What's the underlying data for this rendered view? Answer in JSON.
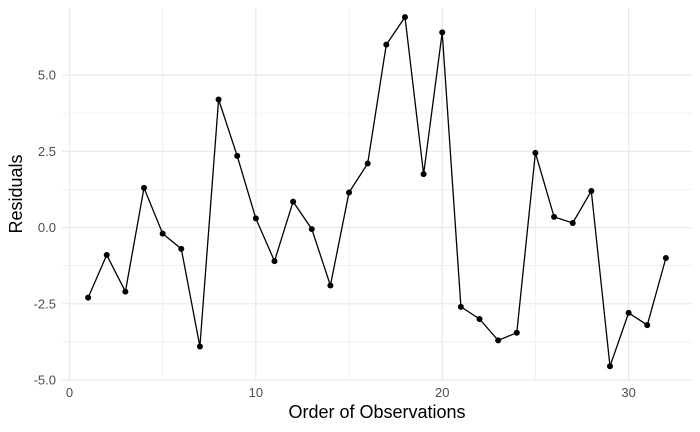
{
  "chart_data": {
    "type": "line",
    "title": "",
    "xlabel": "Order of Observations",
    "ylabel": "Residuals",
    "xlim": [
      -0.4,
      33.4
    ],
    "ylim": [
      -5.0,
      7.2
    ],
    "x_ticks": [
      0,
      10,
      20,
      30
    ],
    "x_tick_labels": [
      "0",
      "10",
      "20",
      "30"
    ],
    "y_ticks": [
      -5.0,
      -2.5,
      0.0,
      2.5,
      5.0
    ],
    "y_tick_labels": [
      "-5.0",
      "-2.5",
      "0.0",
      "2.5",
      "5.0"
    ],
    "grid": true,
    "legend": "none",
    "line_color": "#000000",
    "marker_color": "#000000",
    "gridline_color": "#ebebeb",
    "x": [
      1,
      2,
      3,
      4,
      5,
      6,
      7,
      8,
      9,
      10,
      11,
      12,
      13,
      14,
      15,
      16,
      17,
      18,
      19,
      20,
      21,
      22,
      23,
      24,
      25,
      26,
      27,
      28,
      29,
      30,
      31,
      32
    ],
    "values": [
      -2.3,
      -0.9,
      -2.1,
      1.3,
      -0.2,
      -0.7,
      -3.9,
      4.2,
      2.35,
      0.3,
      -1.1,
      0.85,
      -0.05,
      -1.9,
      1.15,
      2.1,
      6.0,
      6.9,
      1.75,
      6.4,
      -2.6,
      -3.0,
      -3.7,
      -3.45,
      2.45,
      0.35,
      0.15,
      1.2,
      -4.55,
      -2.8,
      -3.2,
      -1.0
    ]
  }
}
